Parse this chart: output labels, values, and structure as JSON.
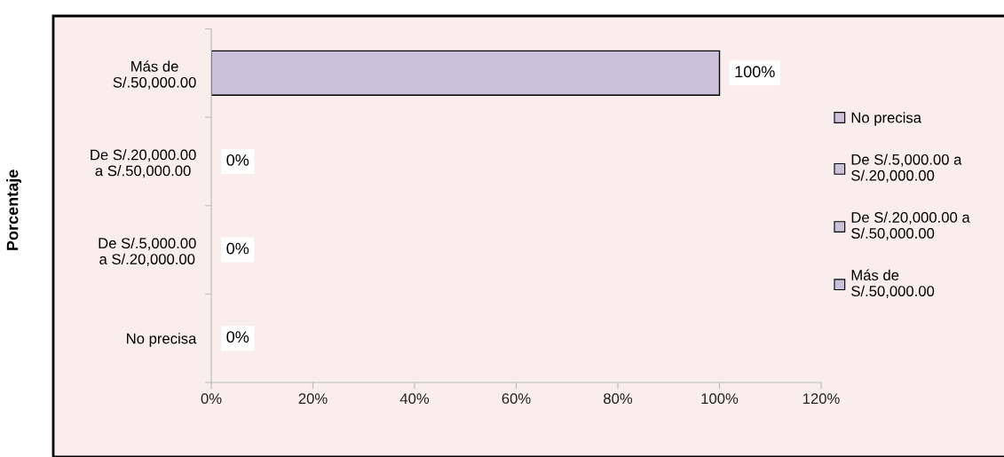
{
  "chart_data": {
    "type": "bar",
    "orientation": "horizontal",
    "ylabel": "Porcentaje",
    "categories": [
      "Más de\nS/.50,000.00",
      "De S/.20,000.00\na S/.50,000.00",
      "De S/.5,000.00\na S/.20,000.00",
      "No precisa"
    ],
    "series": [
      {
        "name": "No precisa",
        "color": "#ccc0da",
        "values": [
          null,
          null,
          null,
          0
        ],
        "value_labels": [
          null,
          null,
          null,
          "0%"
        ]
      },
      {
        "name": "De S/.5,000.00 a\nS/.20,000.00",
        "color": "#ccc0da",
        "values": [
          null,
          null,
          0,
          null
        ],
        "value_labels": [
          null,
          null,
          "0%",
          null
        ]
      },
      {
        "name": "De S/.20,000.00 a\nS/.50,000.00",
        "color": "#ccc0da",
        "values": [
          null,
          0,
          null,
          null
        ],
        "value_labels": [
          null,
          "0%",
          null,
          null
        ]
      },
      {
        "name": "Más de\nS/.50,000.00",
        "color": "#ccc0da",
        "values": [
          100,
          null,
          null,
          null
        ],
        "value_labels": [
          "100%",
          null,
          null,
          null
        ]
      }
    ],
    "xlim": [
      0,
      120
    ],
    "xticks": [
      {
        "value": 0,
        "label": "0%"
      },
      {
        "value": 20,
        "label": "20%"
      },
      {
        "value": 40,
        "label": "40%"
      },
      {
        "value": 60,
        "label": "60%"
      },
      {
        "value": 80,
        "label": "80%"
      },
      {
        "value": 100,
        "label": "100%"
      },
      {
        "value": 120,
        "label": "120%"
      }
    ],
    "grid": false,
    "legend": "right"
  }
}
